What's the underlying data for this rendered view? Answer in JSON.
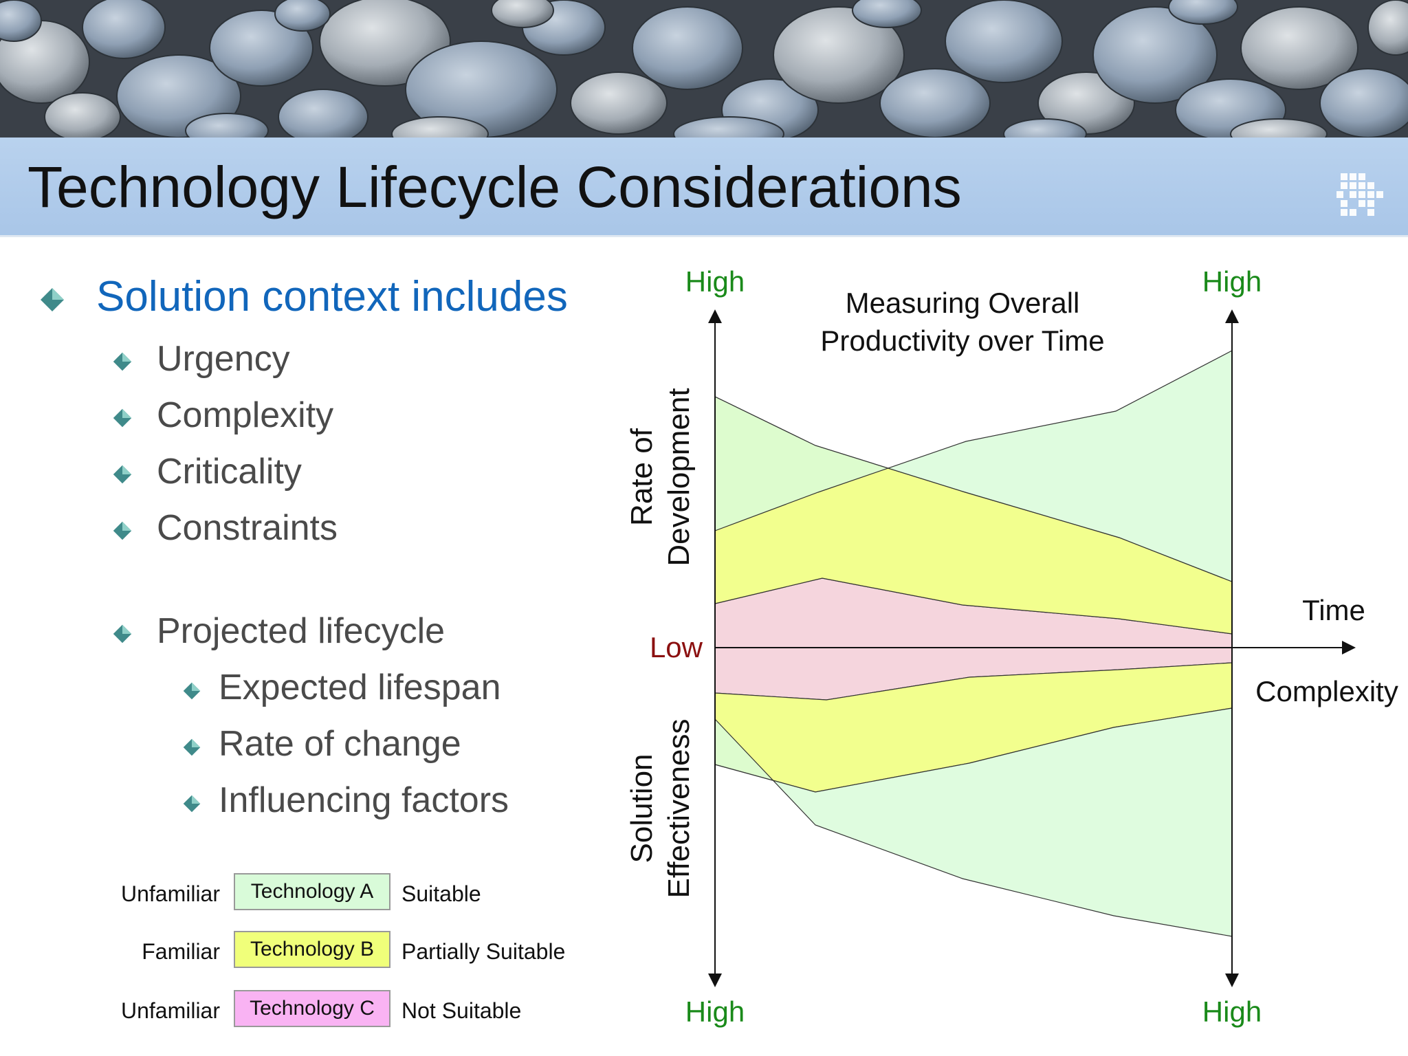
{
  "slide": {
    "title": "Technology Lifecycle Considerations"
  },
  "bullets": {
    "context_heading": "Solution context includes",
    "context_items": [
      "Urgency",
      "Complexity",
      "Criticality",
      "Constraints"
    ],
    "lifecycle_heading": "Projected lifecycle",
    "lifecycle_items": [
      "Expected lifespan",
      "Rate of change",
      "Influencing factors"
    ]
  },
  "legend": [
    {
      "left_label": "Unfamiliar",
      "box_label": "Technology A",
      "right_label": "Suitable",
      "color": "#d9fbd9"
    },
    {
      "left_label": "Familiar",
      "box_label": "Technology B",
      "right_label": "Partially Suitable",
      "color": "#f0ff7a"
    },
    {
      "left_label": "Unfamiliar",
      "box_label": "Technology C",
      "right_label": "Not Suitable",
      "color": "#f9b3f3"
    }
  ],
  "diagram": {
    "title_line1": "Measuring Overall",
    "title_line2": "Productivity over Time",
    "left_top_label": "High",
    "right_top_label": "High",
    "left_bottom_label": "High",
    "right_bottom_label": "High",
    "center_label": "Low",
    "y_upper_line1": "Rate of",
    "y_upper_line2": "Development",
    "y_lower_line1": "Solution",
    "y_lower_line2": "Effectiveness",
    "x_upper_label": "Time",
    "x_lower_label": "Complexity",
    "colors": {
      "high_label": "#1a8a1a",
      "low_label": "#8b1010",
      "green": "#d9fbd9",
      "yellow": "#f0ff7a",
      "pink": "#f5d5dd"
    }
  }
}
